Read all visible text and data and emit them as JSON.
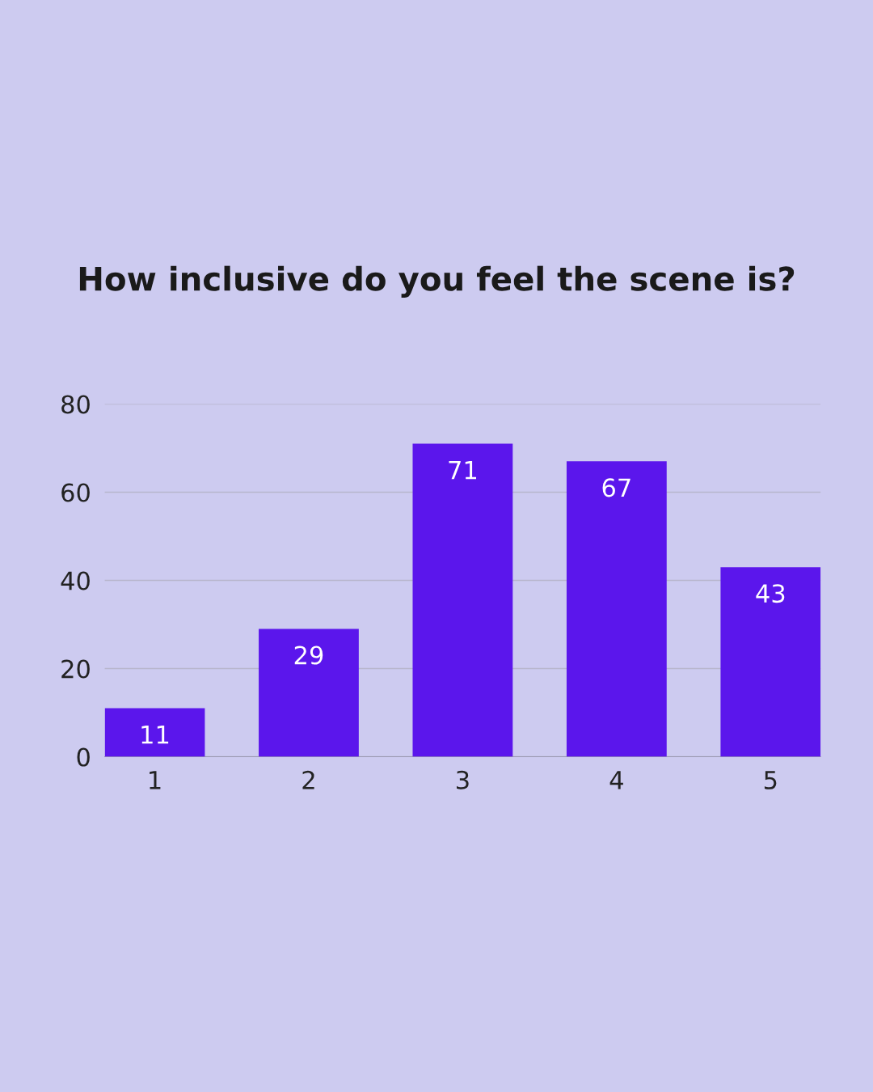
{
  "chart_data": {
    "type": "bar",
    "title": "How inclusive do you feel the scene is?",
    "categories": [
      "1",
      "2",
      "3",
      "4",
      "5"
    ],
    "values": [
      11,
      29,
      71,
      67,
      43
    ],
    "color": "#5b16ec",
    "ylim": [
      0,
      80
    ],
    "yticks": [
      0,
      20,
      40,
      60,
      80
    ],
    "grid": "y",
    "data_labels": true
  }
}
